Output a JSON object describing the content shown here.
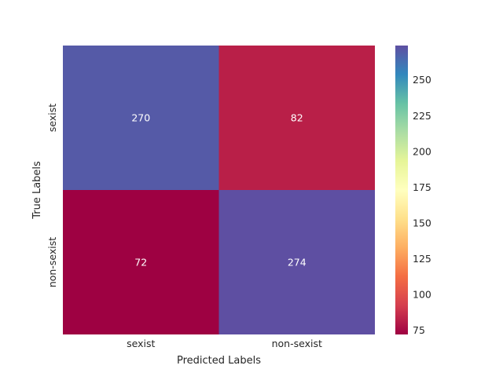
{
  "chart_data": {
    "type": "heatmap",
    "title": "",
    "xlabel": "Predicted Labels",
    "ylabel": "True Labels",
    "x_categories": [
      "sexist",
      "non-sexist"
    ],
    "y_categories": [
      "sexist",
      "non-sexist"
    ],
    "values": [
      [
        270,
        82
      ],
      [
        72,
        274
      ]
    ],
    "colormap": "Spectral",
    "vmin": 72,
    "vmax": 274,
    "colorbar_ticks": [
      75,
      100,
      125,
      150,
      175,
      200,
      225,
      250
    ]
  }
}
